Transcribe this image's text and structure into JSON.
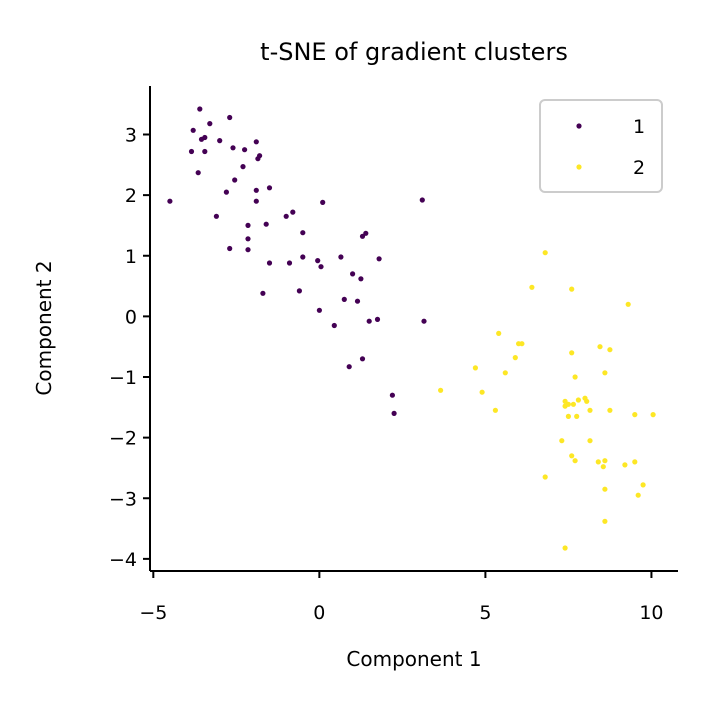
{
  "chart_data": {
    "type": "scatter",
    "title": "t-SNE of gradient clusters",
    "xlabel": "Component 1",
    "ylabel": "Component 2",
    "xlim": [
      -5.1,
      10.8
    ],
    "ylim": [
      -4.2,
      3.8
    ],
    "xticks": [
      -5,
      0,
      5,
      10
    ],
    "xtick_labels": [
      "−5",
      "0",
      "5",
      "10"
    ],
    "yticks": [
      -4,
      -3,
      -2,
      -1,
      0,
      1,
      2,
      3
    ],
    "ytick_labels": [
      "−4",
      "−3",
      "−2",
      "−1",
      "0",
      "1",
      "2",
      "3"
    ],
    "grid": false,
    "legend_position": "top-right",
    "series": [
      {
        "name": "1",
        "color": "#440154",
        "points": [
          [
            -4.5,
            1.9
          ],
          [
            -3.8,
            3.07
          ],
          [
            -3.6,
            3.42
          ],
          [
            -3.3,
            3.18
          ],
          [
            -3.55,
            2.92
          ],
          [
            -3.45,
            2.95
          ],
          [
            -3.85,
            2.72
          ],
          [
            -3.45,
            2.72
          ],
          [
            -3.65,
            2.37
          ],
          [
            -3.0,
            2.9
          ],
          [
            -2.6,
            2.78
          ],
          [
            -2.7,
            3.28
          ],
          [
            -2.25,
            2.75
          ],
          [
            -1.9,
            2.88
          ],
          [
            -1.85,
            2.6
          ],
          [
            -1.8,
            2.65
          ],
          [
            -2.3,
            2.47
          ],
          [
            -2.55,
            2.25
          ],
          [
            -2.8,
            2.05
          ],
          [
            -1.9,
            2.08
          ],
          [
            -1.5,
            2.12
          ],
          [
            -1.9,
            1.9
          ],
          [
            -3.1,
            1.65
          ],
          [
            -2.15,
            1.5
          ],
          [
            -1.6,
            1.52
          ],
          [
            -2.15,
            1.28
          ],
          [
            -2.7,
            1.12
          ],
          [
            -2.15,
            1.1
          ],
          [
            -1.0,
            1.65
          ],
          [
            -0.8,
            1.72
          ],
          [
            -0.5,
            1.38
          ],
          [
            0.1,
            1.88
          ],
          [
            -0.9,
            0.88
          ],
          [
            -0.5,
            0.98
          ],
          [
            -0.05,
            0.92
          ],
          [
            0.05,
            0.82
          ],
          [
            -1.5,
            0.88
          ],
          [
            0.65,
            0.98
          ],
          [
            1.3,
            1.32
          ],
          [
            1.4,
            1.37
          ],
          [
            1.8,
            0.95
          ],
          [
            1.0,
            0.7
          ],
          [
            1.25,
            0.62
          ],
          [
            -1.7,
            0.38
          ],
          [
            -0.6,
            0.42
          ],
          [
            0.75,
            0.28
          ],
          [
            1.15,
            0.25
          ],
          [
            0.0,
            0.1
          ],
          [
            0.45,
            -0.15
          ],
          [
            1.5,
            -0.08
          ],
          [
            1.75,
            -0.05
          ],
          [
            3.1,
            1.92
          ],
          [
            3.15,
            -0.08
          ],
          [
            1.3,
            -0.7
          ],
          [
            0.9,
            -0.83
          ],
          [
            2.2,
            -1.3
          ],
          [
            2.25,
            -1.6
          ]
        ]
      },
      {
        "name": "2",
        "color": "#fde725",
        "points": [
          [
            6.8,
            1.05
          ],
          [
            6.4,
            0.48
          ],
          [
            7.6,
            0.45
          ],
          [
            9.3,
            0.2
          ],
          [
            5.4,
            -0.28
          ],
          [
            6.1,
            -0.45
          ],
          [
            6.0,
            -0.45
          ],
          [
            5.9,
            -0.68
          ],
          [
            4.7,
            -0.85
          ],
          [
            5.6,
            -0.93
          ],
          [
            7.6,
            -0.6
          ],
          [
            8.45,
            -0.5
          ],
          [
            8.75,
            -0.55
          ],
          [
            3.65,
            -1.22
          ],
          [
            4.9,
            -1.25
          ],
          [
            5.3,
            -1.55
          ],
          [
            7.7,
            -1.0
          ],
          [
            8.6,
            -0.93
          ],
          [
            8.0,
            -1.35
          ],
          [
            8.05,
            -1.4
          ],
          [
            7.8,
            -1.38
          ],
          [
            7.4,
            -1.4
          ],
          [
            7.5,
            -1.45
          ],
          [
            7.4,
            -1.48
          ],
          [
            7.65,
            -1.45
          ],
          [
            7.5,
            -1.65
          ],
          [
            7.75,
            -1.65
          ],
          [
            8.15,
            -1.55
          ],
          [
            8.75,
            -1.55
          ],
          [
            9.5,
            -1.62
          ],
          [
            10.05,
            -1.62
          ],
          [
            7.3,
            -2.05
          ],
          [
            8.15,
            -2.05
          ],
          [
            7.6,
            -2.3
          ],
          [
            7.7,
            -2.38
          ],
          [
            8.4,
            -2.4
          ],
          [
            8.55,
            -2.48
          ],
          [
            8.6,
            -2.38
          ],
          [
            9.2,
            -2.45
          ],
          [
            9.5,
            -2.4
          ],
          [
            9.75,
            -2.78
          ],
          [
            9.6,
            -2.95
          ],
          [
            6.8,
            -2.65
          ],
          [
            8.6,
            -2.85
          ],
          [
            8.6,
            -3.38
          ],
          [
            7.4,
            -3.82
          ]
        ]
      }
    ]
  }
}
